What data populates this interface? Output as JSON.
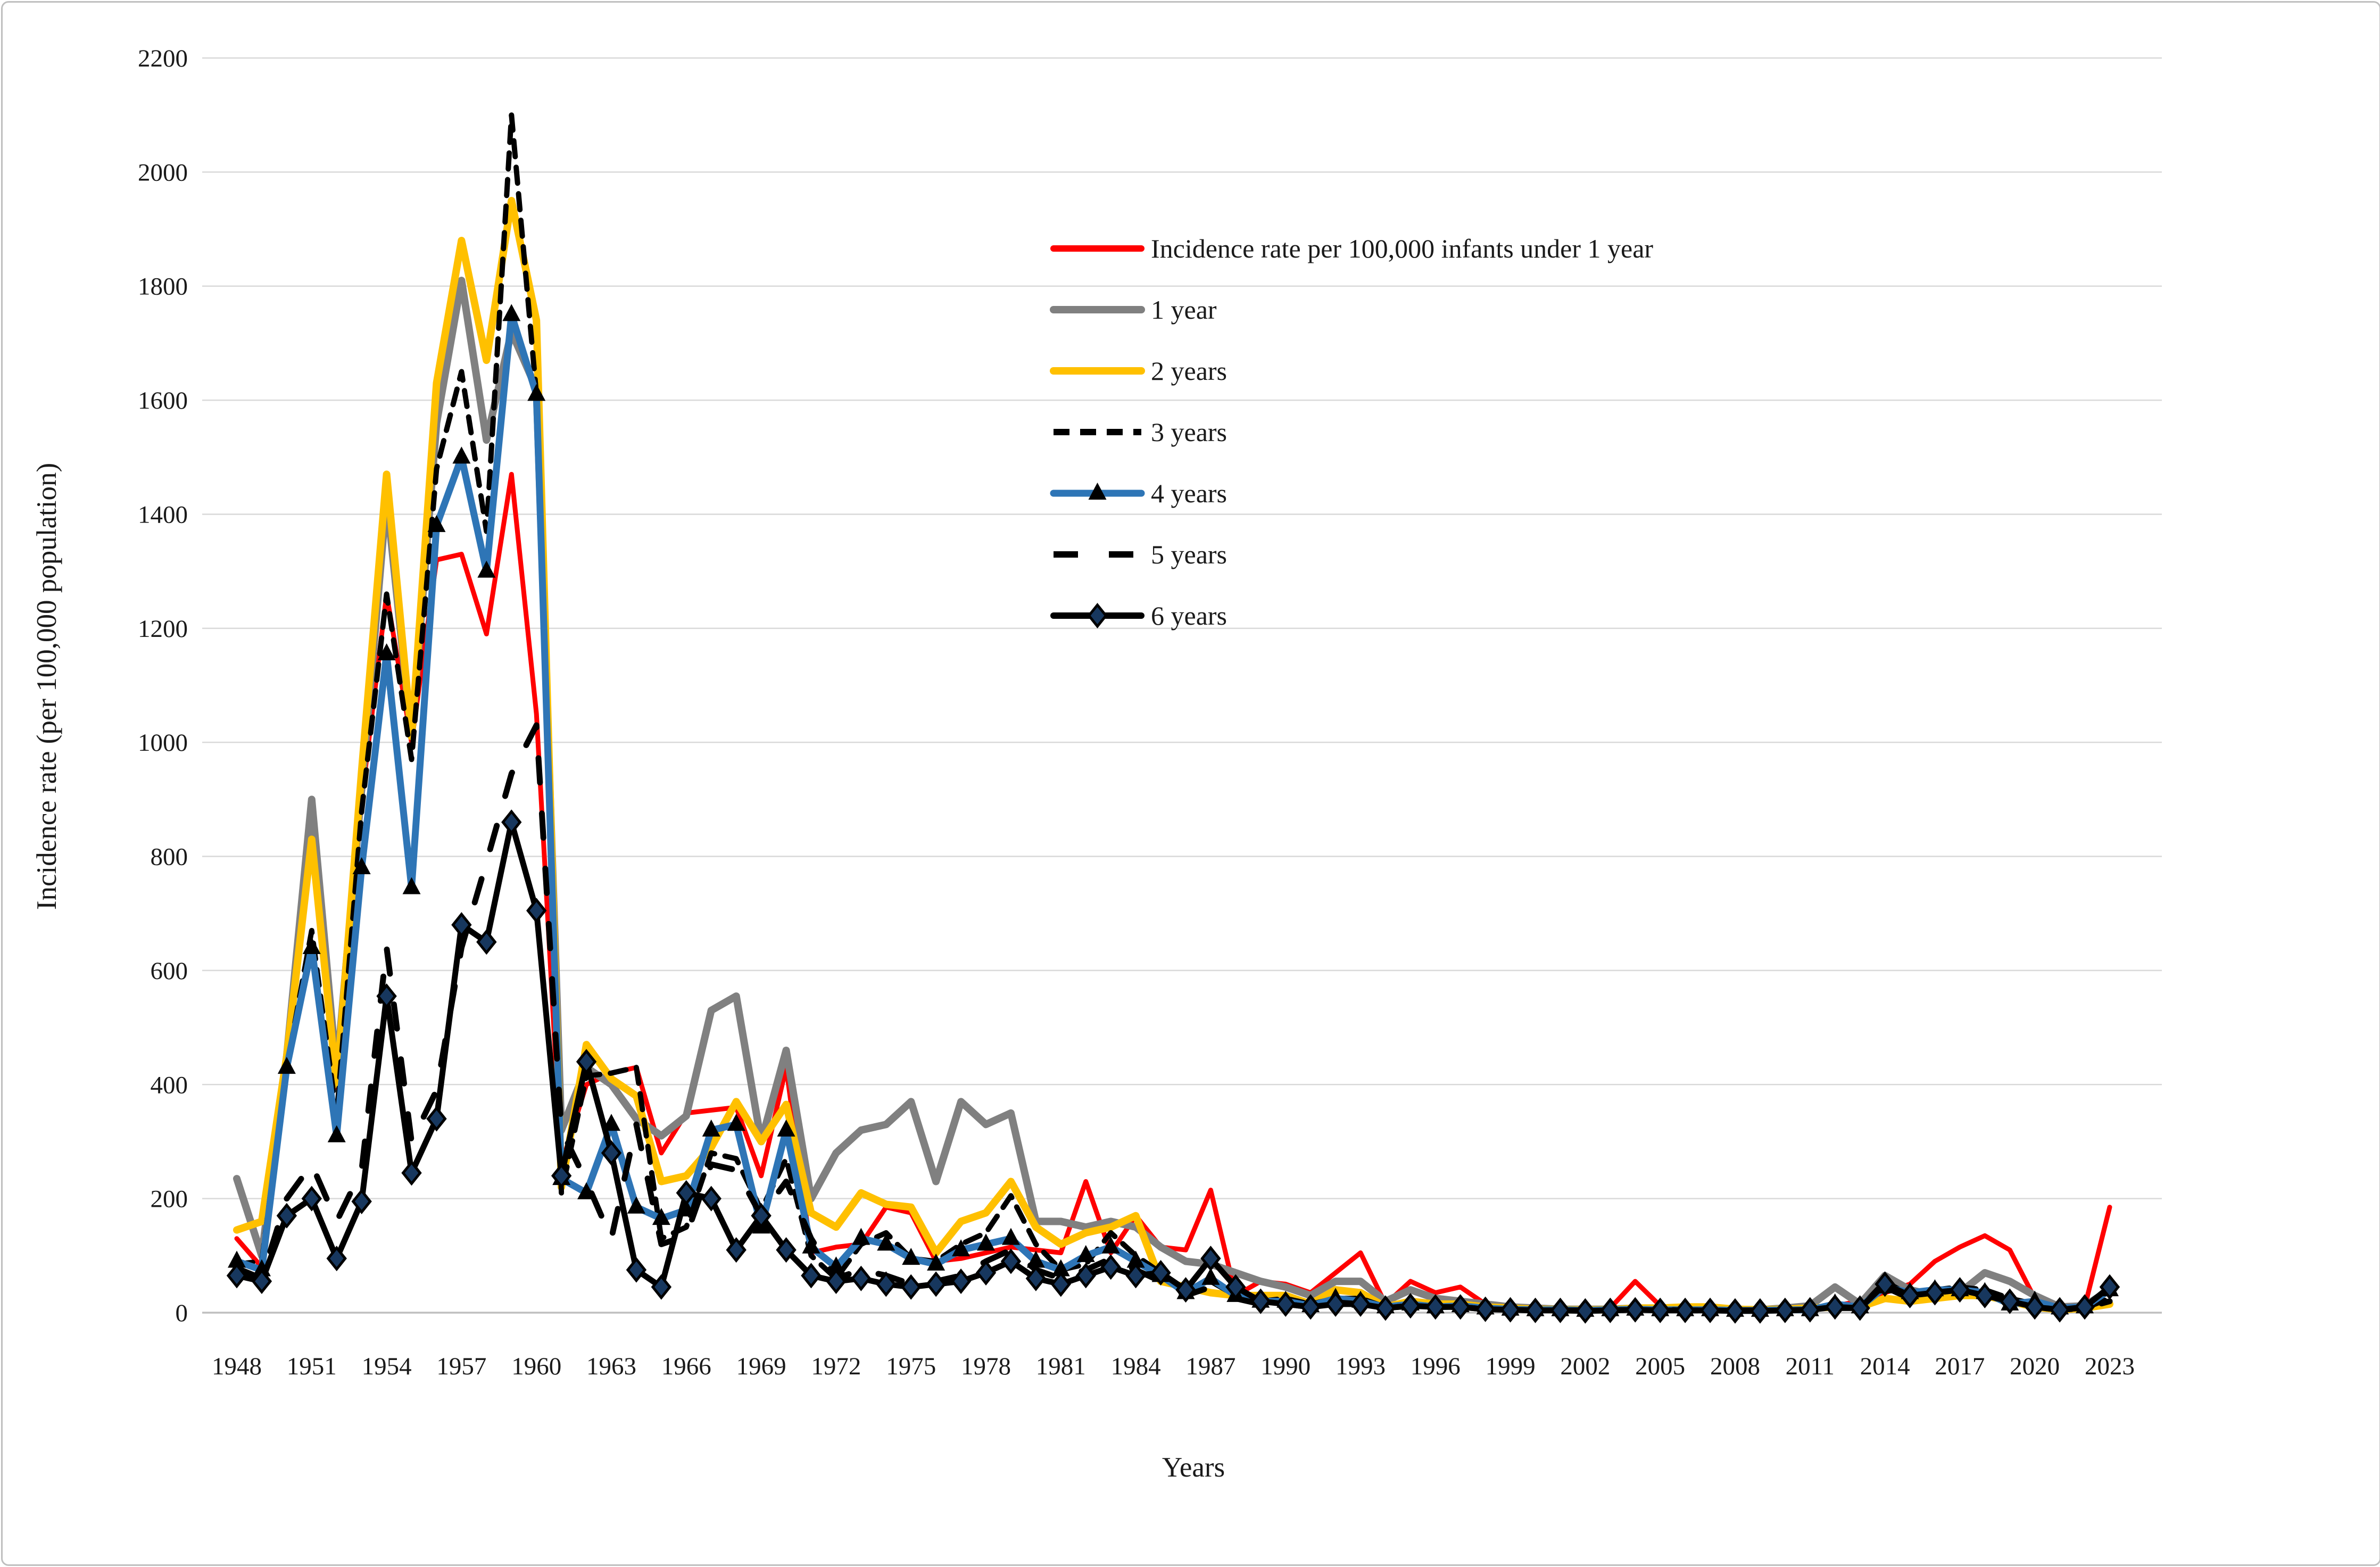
{
  "figure": {
    "xlabel": "Years",
    "ylabel": "Incidence rate (per 100,000 population)"
  },
  "chart_data": {
    "type": "line",
    "title": "",
    "xlabel": "Years",
    "ylabel": "Incidence rate (per 100,000 population)",
    "ylim": [
      0,
      2200
    ],
    "ytick_step": 200,
    "yticks": [
      0,
      200,
      400,
      600,
      800,
      1000,
      1200,
      1400,
      1600,
      1800,
      2000,
      2200
    ],
    "x_start": 1948,
    "x_end": 2023,
    "xtick_years": [
      1948,
      1951,
      1954,
      1957,
      1960,
      1963,
      1966,
      1969,
      1972,
      1975,
      1978,
      1981,
      1984,
      1987,
      1990,
      1993,
      1996,
      1999,
      2002,
      2005,
      2008,
      2011,
      2014,
      2017,
      2020,
      2023
    ],
    "grid": "horizontal",
    "legend_position": "upper-middle-free",
    "x": [
      1948,
      1949,
      1950,
      1951,
      1952,
      1953,
      1954,
      1955,
      1956,
      1957,
      1958,
      1959,
      1960,
      1961,
      1962,
      1963,
      1964,
      1965,
      1966,
      1967,
      1968,
      1969,
      1970,
      1971,
      1972,
      1973,
      1974,
      1975,
      1976,
      1977,
      1978,
      1979,
      1980,
      1981,
      1982,
      1983,
      1984,
      1985,
      1986,
      1987,
      1988,
      1989,
      1990,
      1991,
      1992,
      1993,
      1994,
      1995,
      1996,
      1997,
      1998,
      1999,
      2000,
      2001,
      2002,
      2003,
      2004,
      2005,
      2006,
      2007,
      2008,
      2009,
      2010,
      2011,
      2012,
      2013,
      2014,
      2015,
      2016,
      2017,
      2018,
      2019,
      2020,
      2021,
      2022,
      2023
    ],
    "series": [
      {
        "name": "Incidence rate per 100,000  infants under 1 year",
        "color": "#ff0000",
        "width": 9,
        "dash": null,
        "marker": null,
        "values": [
          130,
          80,
          420,
          840,
          395,
          900,
          1260,
          1000,
          1320,
          1330,
          1190,
          1470,
          1050,
          260,
          400,
          420,
          430,
          280,
          350,
          355,
          360,
          240,
          430,
          105,
          115,
          120,
          185,
          175,
          90,
          95,
          105,
          115,
          110,
          105,
          230,
          105,
          170,
          115,
          110,
          215,
          30,
          55,
          50,
          35,
          70,
          105,
          15,
          55,
          35,
          45,
          15,
          10,
          8,
          6,
          5,
          8,
          55,
          12,
          6,
          5,
          5,
          4,
          5,
          8,
          12,
          20,
          35,
          50,
          90,
          115,
          135,
          110,
          25,
          8,
          10,
          185
        ]
      },
      {
        "name": "1 year",
        "color": "#808080",
        "width": 14,
        "dash": null,
        "marker": null,
        "values": [
          235,
          100,
          450,
          900,
          420,
          920,
          1430,
          1010,
          1560,
          1810,
          1530,
          1720,
          1620,
          320,
          430,
          400,
          340,
          310,
          345,
          530,
          555,
          300,
          460,
          200,
          280,
          320,
          330,
          370,
          230,
          370,
          330,
          350,
          160,
          160,
          150,
          160,
          150,
          115,
          90,
          85,
          70,
          55,
          45,
          30,
          55,
          55,
          20,
          40,
          25,
          20,
          15,
          10,
          8,
          6,
          6,
          6,
          8,
          8,
          6,
          6,
          6,
          5,
          8,
          12,
          45,
          15,
          65,
          40,
          30,
          35,
          70,
          55,
          30,
          10,
          12,
          40
        ]
      },
      {
        "name": "2 years",
        "color": "#ffc000",
        "width": 14,
        "dash": null,
        "marker": null,
        "values": [
          145,
          160,
          450,
          830,
          400,
          950,
          1470,
          1010,
          1630,
          1880,
          1670,
          1950,
          1740,
          220,
          470,
          410,
          380,
          230,
          240,
          290,
          370,
          300,
          365,
          175,
          150,
          210,
          190,
          185,
          105,
          160,
          175,
          230,
          150,
          120,
          140,
          150,
          170,
          55,
          45,
          35,
          30,
          30,
          30,
          15,
          40,
          35,
          10,
          20,
          15,
          15,
          10,
          8,
          6,
          5,
          5,
          5,
          8,
          8,
          10,
          10,
          6,
          5,
          6,
          8,
          10,
          10,
          25,
          20,
          25,
          30,
          30,
          20,
          10,
          5,
          8,
          15
        ]
      },
      {
        "name": "3 years",
        "color": "#000000",
        "width": 10,
        "dash": "30 20",
        "marker": null,
        "values": [
          85,
          90,
          430,
          670,
          345,
          880,
          1260,
          970,
          1480,
          1650,
          1370,
          2100,
          1610,
          210,
          415,
          420,
          430,
          130,
          150,
          280,
          270,
          180,
          270,
          100,
          60,
          120,
          140,
          95,
          90,
          120,
          140,
          205,
          120,
          75,
          85,
          140,
          100,
          70,
          40,
          55,
          30,
          20,
          25,
          15,
          25,
          25,
          10,
          15,
          12,
          12,
          8,
          6,
          5,
          4,
          4,
          4,
          6,
          5,
          5,
          5,
          4,
          4,
          5,
          6,
          10,
          8,
          55,
          30,
          40,
          45,
          40,
          25,
          15,
          5,
          8,
          25
        ]
      },
      {
        "name": "4 years",
        "color": "#2e75b6",
        "width": 13,
        "dash": null,
        "marker": "triangle",
        "marker_color": "#000000",
        "values": [
          90,
          75,
          430,
          640,
          310,
          780,
          1155,
          745,
          1380,
          1500,
          1300,
          1750,
          1610,
          235,
          210,
          330,
          185,
          165,
          180,
          320,
          330,
          150,
          320,
          115,
          80,
          130,
          120,
          95,
          85,
          110,
          120,
          130,
          90,
          75,
          100,
          115,
          90,
          65,
          35,
          60,
          30,
          20,
          20,
          12,
          25,
          20,
          10,
          15,
          10,
          12,
          8,
          6,
          5,
          5,
          4,
          5,
          6,
          5,
          5,
          5,
          4,
          4,
          5,
          5,
          15,
          10,
          45,
          35,
          40,
          40,
          35,
          15,
          20,
          8,
          10,
          40
        ]
      },
      {
        "name": "5 years",
        "color": "#000000",
        "width": 11,
        "dash": "46 58",
        "marker": null,
        "values": [
          78,
          60,
          200,
          260,
          160,
          250,
          640,
          300,
          390,
          640,
          790,
          945,
          1030,
          320,
          230,
          130,
          330,
          120,
          135,
          260,
          250,
          170,
          230,
          130,
          60,
          75,
          65,
          50,
          55,
          65,
          90,
          110,
          75,
          60,
          75,
          95,
          75,
          55,
          30,
          45,
          25,
          15,
          15,
          10,
          18,
          15,
          8,
          12,
          10,
          10,
          6,
          5,
          4,
          4,
          4,
          4,
          5,
          5,
          4,
          4,
          4,
          4,
          4,
          5,
          8,
          8,
          45,
          25,
          35,
          40,
          35,
          20,
          10,
          5,
          8,
          20
        ]
      },
      {
        "name": "6 years",
        "color": "#000000",
        "width": 11,
        "dash": null,
        "marker": "diamond",
        "marker_color": "#17375e",
        "values": [
          65,
          55,
          170,
          200,
          95,
          195,
          555,
          245,
          340,
          680,
          650,
          860,
          705,
          240,
          440,
          280,
          75,
          45,
          210,
          200,
          110,
          170,
          110,
          65,
          55,
          60,
          50,
          45,
          50,
          55,
          70,
          90,
          60,
          50,
          65,
          80,
          65,
          70,
          40,
          95,
          45,
          20,
          15,
          10,
          15,
          15,
          8,
          12,
          10,
          10,
          6,
          5,
          4,
          4,
          3,
          4,
          5,
          4,
          4,
          4,
          3,
          3,
          4,
          5,
          10,
          8,
          50,
          30,
          35,
          40,
          30,
          20,
          10,
          5,
          10,
          45
        ]
      }
    ]
  }
}
